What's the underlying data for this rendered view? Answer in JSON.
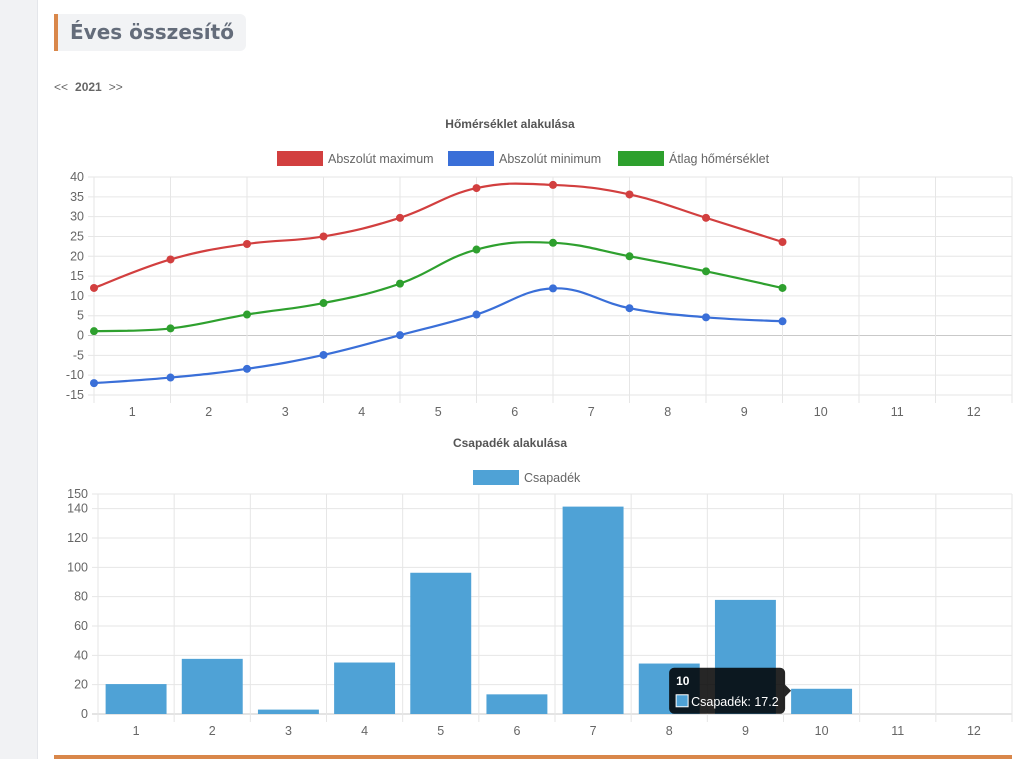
{
  "page": {
    "heading": "Éves összesítő",
    "year_nav": {
      "prev": "<<",
      "year": "2021",
      "next": ">>"
    }
  },
  "chart_data": [
    {
      "type": "line",
      "title": "Hőmérséklet alakulása",
      "categories": [
        "1",
        "2",
        "3",
        "4",
        "5",
        "6",
        "7",
        "8",
        "9",
        "10",
        "11",
        "12"
      ],
      "series": [
        {
          "name": "Abszolút maximum",
          "color": "#d23f3f",
          "values": [
            12,
            19.2,
            23.1,
            25,
            29.7,
            37.2,
            38,
            35.6,
            29.7,
            23.6,
            null,
            null
          ]
        },
        {
          "name": "Abszolút minimum",
          "color": "#3a6fd8",
          "values": [
            -12,
            -10.6,
            -8.4,
            -4.9,
            0.1,
            5.3,
            11.9,
            6.9,
            4.6,
            3.6,
            null,
            null
          ]
        },
        {
          "name": "Átlag hőmérséklet",
          "color": "#2ea02e",
          "values": [
            1.1,
            1.8,
            5.3,
            8.2,
            13.1,
            21.7,
            23.4,
            20,
            16.2,
            12,
            null,
            null
          ]
        }
      ],
      "ylim": [
        -15,
        40
      ],
      "yticks": [
        -15,
        -10,
        -5,
        0,
        5,
        10,
        15,
        20,
        25,
        30,
        35,
        40
      ],
      "grid": true,
      "legend": "top"
    },
    {
      "type": "bar",
      "title": "Csapadék alakulása",
      "categories": [
        "1",
        "2",
        "3",
        "4",
        "5",
        "6",
        "7",
        "8",
        "9",
        "10",
        "11",
        "12"
      ],
      "series": [
        {
          "name": "Csapadék",
          "color": "#4fa2d6",
          "values": [
            20.4,
            37.6,
            3,
            35.1,
            96.3,
            13.4,
            141.4,
            34.4,
            77.8,
            17.2,
            0,
            0
          ]
        }
      ],
      "ylim": [
        0,
        150
      ],
      "yticks": [
        0,
        20,
        40,
        60,
        80,
        100,
        120,
        140,
        150
      ],
      "grid": true,
      "legend": "top",
      "tooltip": {
        "title": "10",
        "label": "Csapadék: 17.2",
        "category_index": 9
      }
    }
  ]
}
